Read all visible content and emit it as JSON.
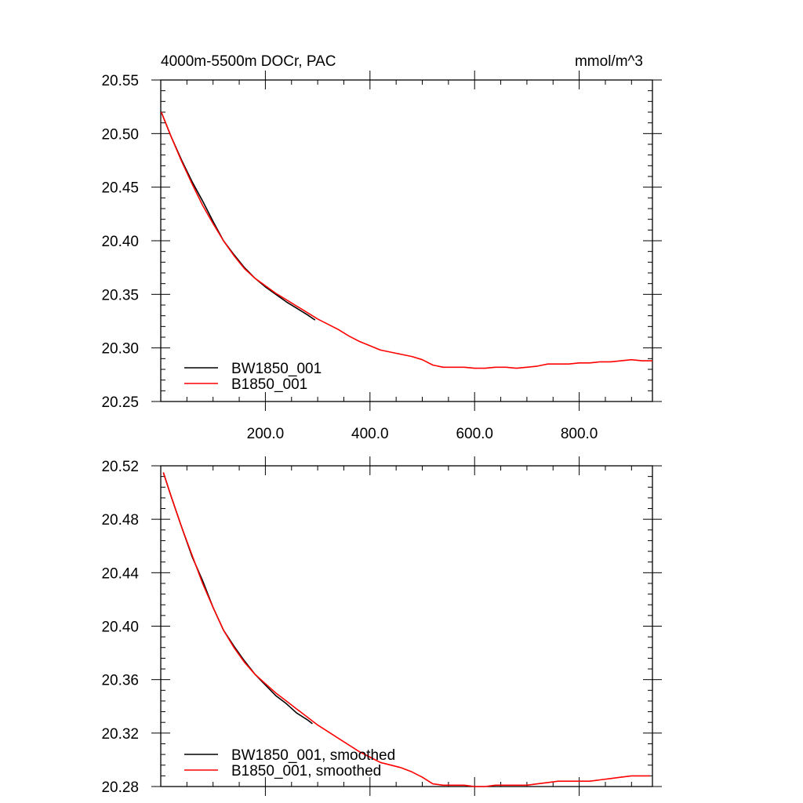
{
  "figure": {
    "title": "4000m-5500m DOCr, PAC",
    "units": "mmol/m^3"
  },
  "chart_data": [
    {
      "type": "line",
      "xlim": [
        0,
        940
      ],
      "ylim": [
        20.25,
        20.55
      ],
      "x_ticks": [
        200,
        400,
        600,
        800
      ],
      "x_tick_labels": [
        "200.0",
        "400.0",
        "600.0",
        "800.0"
      ],
      "y_ticks": [
        20.25,
        20.3,
        20.35,
        20.4,
        20.45,
        20.5,
        20.55
      ],
      "y_tick_labels": [
        "20.25",
        "20.30",
        "20.35",
        "20.40",
        "20.45",
        "20.50",
        "20.55"
      ],
      "legend_position": "bottom-left",
      "series": [
        {
          "name": "BW1850_001",
          "color": "#000000",
          "x": [
            1,
            20,
            40,
            60,
            80,
            100,
            120,
            140,
            160,
            180,
            200,
            220,
            240,
            260,
            280,
            295
          ],
          "y": [
            20.52,
            20.497,
            20.475,
            20.455,
            20.437,
            20.418,
            20.4,
            20.387,
            20.375,
            20.365,
            20.357,
            20.35,
            20.343,
            20.337,
            20.331,
            20.326
          ]
        },
        {
          "name": "B1850_001",
          "color": "#ff0000",
          "x": [
            1,
            20,
            40,
            60,
            80,
            100,
            120,
            140,
            160,
            180,
            200,
            220,
            240,
            260,
            280,
            300,
            320,
            340,
            360,
            380,
            400,
            420,
            440,
            460,
            480,
            500,
            520,
            540,
            560,
            580,
            600,
            620,
            640,
            660,
            680,
            700,
            720,
            740,
            760,
            780,
            800,
            820,
            840,
            860,
            880,
            900,
            920,
            940
          ],
          "y": [
            20.52,
            20.497,
            20.474,
            20.453,
            20.433,
            20.416,
            20.4,
            20.386,
            20.374,
            20.365,
            20.358,
            20.351,
            20.345,
            20.339,
            20.333,
            20.327,
            20.322,
            20.317,
            20.311,
            20.306,
            20.302,
            20.298,
            20.296,
            20.294,
            20.292,
            20.289,
            20.284,
            20.282,
            20.282,
            20.282,
            20.281,
            20.281,
            20.282,
            20.282,
            20.281,
            20.282,
            20.283,
            20.285,
            20.285,
            20.285,
            20.286,
            20.286,
            20.287,
            20.287,
            20.288,
            20.289,
            20.288,
            20.288
          ]
        }
      ]
    },
    {
      "type": "line",
      "xlim": [
        0,
        940
      ],
      "ylim": [
        20.28,
        20.52
      ],
      "x_ticks": [
        200,
        400,
        600,
        800
      ],
      "x_tick_labels": [],
      "y_ticks": [
        20.28,
        20.32,
        20.36,
        20.4,
        20.44,
        20.48,
        20.52
      ],
      "y_tick_labels": [
        "20.28",
        "20.32",
        "20.36",
        "20.40",
        "20.44",
        "20.48",
        "20.52"
      ],
      "legend_position": "bottom-left",
      "series": [
        {
          "name": "BW1850_001, smoothed",
          "color": "#000000",
          "x": [
            5,
            20,
            40,
            60,
            80,
            100,
            120,
            140,
            160,
            180,
            200,
            220,
            240,
            260,
            280,
            290
          ],
          "y": [
            20.515,
            20.497,
            20.474,
            20.452,
            20.434,
            20.414,
            20.397,
            20.385,
            20.374,
            20.364,
            20.356,
            20.348,
            20.342,
            20.335,
            20.33,
            20.327
          ]
        },
        {
          "name": "B1850_001, smoothed",
          "color": "#ff0000",
          "x": [
            5,
            20,
            40,
            60,
            80,
            100,
            120,
            140,
            160,
            180,
            200,
            220,
            240,
            260,
            280,
            300,
            320,
            340,
            360,
            380,
            400,
            420,
            440,
            460,
            480,
            500,
            520,
            540,
            560,
            580,
            600,
            620,
            640,
            660,
            680,
            700,
            720,
            740,
            760,
            780,
            800,
            820,
            840,
            860,
            880,
            900,
            920,
            935
          ],
          "y": [
            20.515,
            20.497,
            20.474,
            20.453,
            20.432,
            20.414,
            20.397,
            20.384,
            20.373,
            20.364,
            20.357,
            20.35,
            20.344,
            20.338,
            20.332,
            20.326,
            20.321,
            20.316,
            20.311,
            20.306,
            20.302,
            20.298,
            20.296,
            20.294,
            20.291,
            20.287,
            20.282,
            20.281,
            20.281,
            20.281,
            20.28,
            20.28,
            20.281,
            20.281,
            20.281,
            20.281,
            20.282,
            20.283,
            20.284,
            20.284,
            20.284,
            20.284,
            20.285,
            20.286,
            20.287,
            20.288,
            20.288,
            20.288
          ]
        }
      ]
    }
  ]
}
